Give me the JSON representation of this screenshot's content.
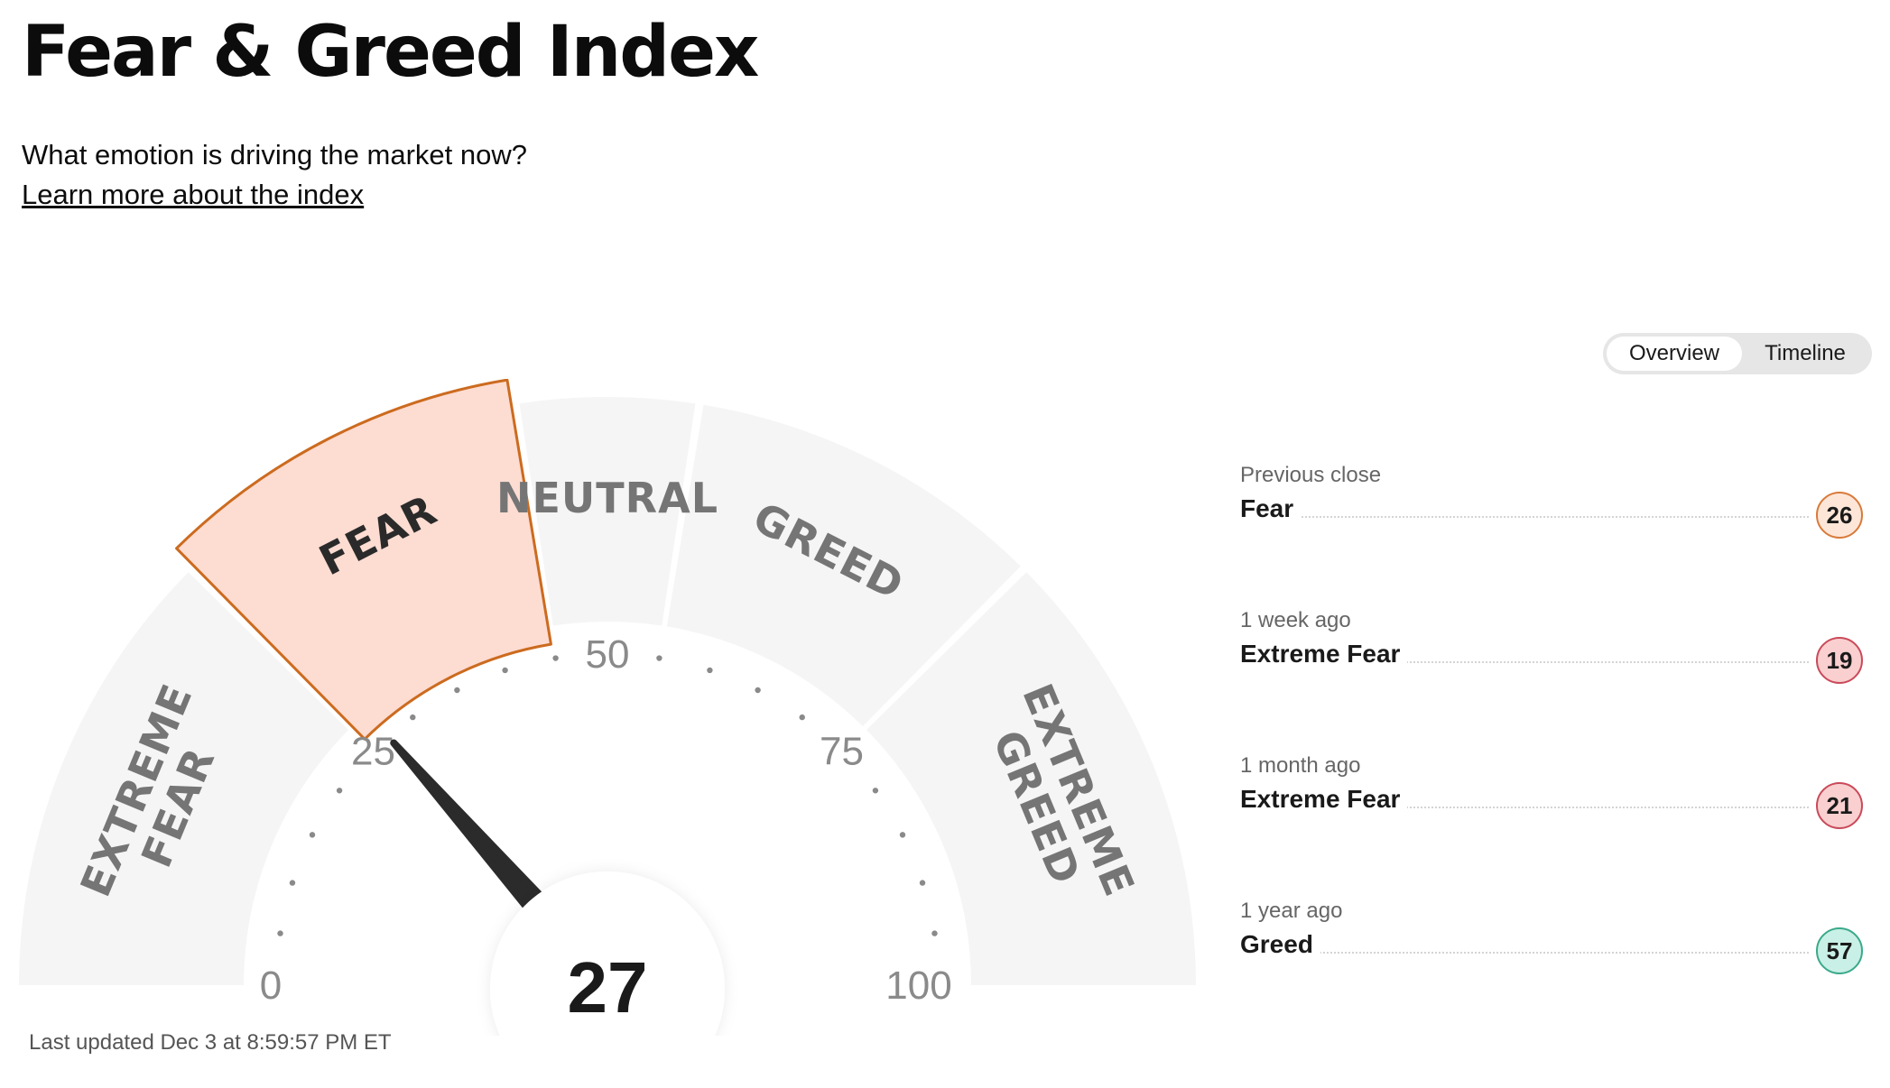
{
  "header": {
    "title": "Fear & Greed Index",
    "subtitle": "What emotion is driving the market now?",
    "learn_more": "Learn more about the index"
  },
  "gauge": {
    "value": 27,
    "min": 0,
    "max": 100,
    "tick_labels": [
      "0",
      "25",
      "50",
      "75",
      "100"
    ],
    "segments": [
      {
        "label_lines": [
          "EXTREME",
          "FEAR"
        ],
        "from": 0,
        "to": 25,
        "active": false
      },
      {
        "label_lines": [
          "FEAR"
        ],
        "from": 25,
        "to": 45,
        "active": true
      },
      {
        "label_lines": [
          "NEUTRAL"
        ],
        "from": 45,
        "to": 55,
        "active": false
      },
      {
        "label_lines": [
          "GREED"
        ],
        "from": 55,
        "to": 75,
        "active": false
      },
      {
        "label_lines": [
          "EXTREME",
          "GREED"
        ],
        "from": 75,
        "to": 100,
        "active": false
      }
    ],
    "colors": {
      "segment_fill": "#f5f5f5",
      "active_fill": "#fddcd2",
      "active_stroke": "#cc6b1f",
      "needle": "#2b2b2b",
      "tick_dot": "#8a8a8a"
    }
  },
  "last_updated": "Last updated Dec 3 at 8:59:57 PM ET",
  "toggle": {
    "options": [
      "Overview",
      "Timeline"
    ],
    "selected": "Overview"
  },
  "history": [
    {
      "label": "Previous close",
      "rating": "Fear",
      "value": "26",
      "badge_bg": "#fde6d8",
      "badge_border": "#d87a3a"
    },
    {
      "label": "1 week ago",
      "rating": "Extreme Fear",
      "value": "19",
      "badge_bg": "#f9cfcf",
      "badge_border": "#c94a5a"
    },
    {
      "label": "1 month ago",
      "rating": "Extreme Fear",
      "value": "21",
      "badge_bg": "#f9cfcf",
      "badge_border": "#c94a5a"
    },
    {
      "label": "1 year ago",
      "rating": "Greed",
      "value": "57",
      "badge_bg": "#c9f0e6",
      "badge_border": "#3aa98a"
    }
  ]
}
